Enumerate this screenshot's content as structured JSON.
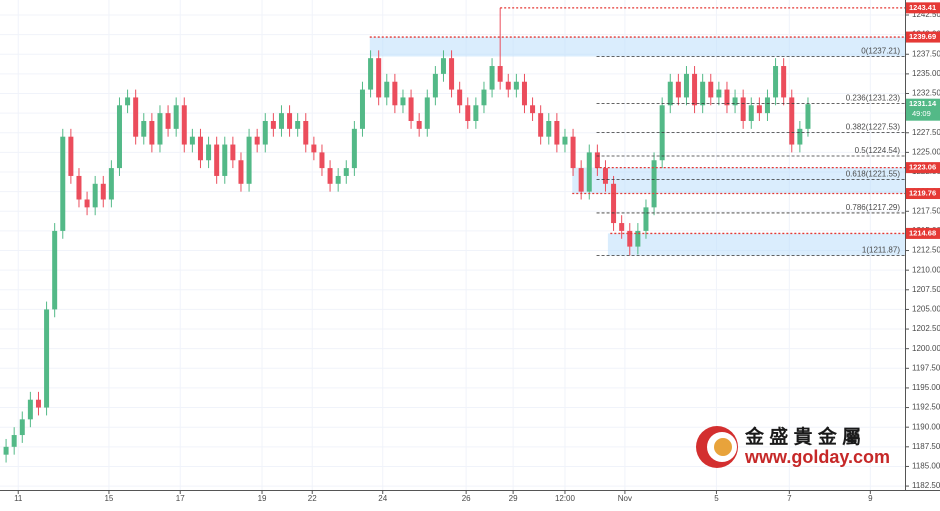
{
  "chart_data": {
    "type": "candlestick",
    "open": [
      1186.5,
      1187.5,
      1189,
      1191,
      1193.5,
      1192.5,
      1205,
      1215,
      1227,
      1222,
      1219,
      1218,
      1221,
      1219,
      1223,
      1231,
      1232,
      1227,
      1229,
      1226,
      1230,
      1228,
      1231,
      1226,
      1227,
      1224,
      1226,
      1222,
      1226,
      1224,
      1221,
      1227,
      1226,
      1229,
      1228,
      1230,
      1228,
      1229,
      1226,
      1225,
      1223,
      1221,
      1222,
      1223,
      1228,
      1233,
      1237,
      1232,
      1234,
      1231,
      1232,
      1229,
      1228,
      1232,
      1235,
      1237,
      1233,
      1231,
      1229,
      1231,
      1233,
      1236,
      1234,
      1233,
      1234,
      1231,
      1230,
      1227,
      1229,
      1226,
      1227,
      1223,
      1220,
      1225,
      1223,
      1221,
      1216,
      1215,
      1213,
      1215,
      1218,
      1224,
      1231,
      1234,
      1232,
      1235,
      1231,
      1234,
      1232,
      1233,
      1231,
      1232,
      1229,
      1231,
      1230,
      1232,
      1236,
      1232,
      1226,
      1228
    ],
    "high": [
      1188.5,
      1190,
      1192,
      1194.5,
      1194.5,
      1206,
      1216,
      1228,
      1228,
      1223,
      1220,
      1222,
      1222,
      1224,
      1232,
      1233,
      1233,
      1230,
      1230,
      1231,
      1231,
      1232,
      1232,
      1228,
      1228,
      1227,
      1227,
      1227,
      1227,
      1225,
      1228,
      1228,
      1230,
      1230,
      1231,
      1231,
      1230,
      1230,
      1227,
      1226,
      1224,
      1223,
      1224,
      1229,
      1234,
      1238,
      1238,
      1235,
      1235,
      1233,
      1233,
      1230,
      1233,
      1236,
      1238,
      1238,
      1234,
      1232,
      1232,
      1234,
      1237,
      1243.41,
      1235,
      1235,
      1235,
      1232,
      1231,
      1230,
      1230,
      1228,
      1228,
      1224,
      1226,
      1226,
      1224,
      1222,
      1217,
      1216,
      1216,
      1219,
      1225,
      1232,
      1235,
      1235,
      1236,
      1236,
      1235,
      1235,
      1234,
      1234,
      1233,
      1233,
      1232,
      1232,
      1233,
      1237,
      1237,
      1233,
      1229,
      1232
    ],
    "low": [
      1185.5,
      1186.5,
      1188,
      1190,
      1191.5,
      1191.5,
      1204,
      1214,
      1221,
      1218,
      1217,
      1217,
      1218,
      1218,
      1222,
      1230,
      1226,
      1226,
      1225,
      1225,
      1227,
      1227,
      1225,
      1225,
      1223,
      1223,
      1221,
      1221,
      1223,
      1220,
      1220,
      1225,
      1225,
      1227,
      1227,
      1227,
      1227,
      1225,
      1224,
      1222,
      1220,
      1220,
      1221,
      1222,
      1227,
      1232,
      1231,
      1231,
      1230,
      1230,
      1228,
      1227,
      1227,
      1231,
      1234,
      1232,
      1230,
      1228,
      1228,
      1230,
      1232,
      1233,
      1232,
      1232,
      1230,
      1229,
      1226,
      1226,
      1225,
      1225,
      1222,
      1219,
      1219,
      1222,
      1220,
      1215,
      1214,
      1211.87,
      1212,
      1214,
      1217,
      1223,
      1230,
      1231,
      1231,
      1230,
      1230,
      1231,
      1231,
      1230,
      1230,
      1228,
      1228,
      1229,
      1229,
      1231,
      1231,
      1225,
      1225,
      1227
    ],
    "close": [
      1187.5,
      1189,
      1191,
      1193.5,
      1192.5,
      1205,
      1215,
      1227,
      1222,
      1219,
      1218,
      1221,
      1219,
      1223,
      1231,
      1232,
      1227,
      1229,
      1226,
      1230,
      1228,
      1231,
      1226,
      1227,
      1224,
      1226,
      1222,
      1226,
      1224,
      1221,
      1227,
      1226,
      1229,
      1228,
      1230,
      1228,
      1229,
      1226,
      1225,
      1223,
      1221,
      1222,
      1223,
      1228,
      1233,
      1237,
      1232,
      1234,
      1231,
      1232,
      1229,
      1228,
      1232,
      1235,
      1237,
      1233,
      1231,
      1229,
      1231,
      1233,
      1236,
      1234,
      1233,
      1234,
      1231,
      1230,
      1227,
      1229,
      1226,
      1227,
      1223,
      1220,
      1225,
      1223,
      1221,
      1216,
      1215,
      1213,
      1215,
      1218,
      1224,
      1231,
      1234,
      1232,
      1235,
      1231,
      1234,
      1232,
      1233,
      1231,
      1232,
      1229,
      1231,
      1230,
      1232,
      1236,
      1232,
      1226,
      1228,
      1231.14
    ],
    "up_color": "#53b987",
    "down_color": "#eb4d5c",
    "xlim": [
      -0.75,
      110.98
    ],
    "xticks": [
      {
        "value": 1.5,
        "label": "11"
      },
      {
        "value": 12.7,
        "label": "15"
      },
      {
        "value": 21.5,
        "label": "17"
      },
      {
        "value": 31.6,
        "label": "19"
      },
      {
        "value": 37.8,
        "label": "22"
      },
      {
        "value": 46.5,
        "label": "24"
      },
      {
        "value": 56.8,
        "label": "26"
      },
      {
        "value": 62.6,
        "label": "29"
      },
      {
        "value": 69,
        "label": "12:00"
      },
      {
        "value": 76.4,
        "label": "Nov"
      },
      {
        "value": 87.7,
        "label": "5"
      },
      {
        "value": 96.7,
        "label": "7"
      },
      {
        "value": 106.7,
        "label": "9"
      }
    ],
    "ylim": [
      1182,
      1244.41
    ],
    "yticks": [
      {
        "value": 1182.5,
        "label": "1182.50"
      },
      {
        "value": 1185,
        "label": "1185.00"
      },
      {
        "value": 1187.5,
        "label": "1187.50"
      },
      {
        "value": 1190,
        "label": "1190.00"
      },
      {
        "value": 1192.5,
        "label": "1192.50"
      },
      {
        "value": 1195,
        "label": "1195.00"
      },
      {
        "value": 1197.5,
        "label": "1197.50"
      },
      {
        "value": 1200,
        "label": "1200.00"
      },
      {
        "value": 1202.5,
        "label": "1202.50"
      },
      {
        "value": 1205,
        "label": "1205.00"
      },
      {
        "value": 1207.5,
        "label": "1207.50"
      },
      {
        "value": 1210,
        "label": "1210.00"
      },
      {
        "value": 1212.5,
        "label": "1212.50"
      },
      {
        "value": 1215,
        "label": "1215.00"
      },
      {
        "value": 1217.5,
        "label": "1217.50"
      },
      {
        "value": 1220,
        "label": "1220.00"
      },
      {
        "value": 1222.5,
        "label": "1222.50"
      },
      {
        "value": 1225,
        "label": "1225.00"
      },
      {
        "value": 1227.5,
        "label": "1227.50"
      },
      {
        "value": 1230,
        "label": "1230.00"
      },
      {
        "value": 1232.5,
        "label": "1232.50"
      },
      {
        "value": 1235,
        "label": "1235.00"
      },
      {
        "value": 1237.5,
        "label": "1237.50"
      },
      {
        "value": 1240,
        "label": "1240.00"
      },
      {
        "value": 1242.5,
        "label": "1242.50"
      }
    ],
    "grid": true,
    "zones": [
      {
        "from": 1237.21,
        "to": 1239.69,
        "x_start": 44.9
      },
      {
        "from": 1219.76,
        "to": 1223.06,
        "x_start": 69.9
      },
      {
        "from": 1211.87,
        "to": 1214.68,
        "x_start": 74.3
      }
    ],
    "price_lines": [
      {
        "value": 1243.41,
        "x_start": 61
      },
      {
        "value": 1239.69,
        "x_start": 44.9
      },
      {
        "value": 1223.06,
        "x_start": 72.8
      },
      {
        "value": 1219.76,
        "x_start": 69.9
      },
      {
        "value": 1214.68,
        "x_start": 74.6
      }
    ],
    "price_line_color": "#e53935",
    "fib_start": 72.9,
    "fib_levels": [
      {
        "text": "0(1237.21)",
        "value": 1237.21
      },
      {
        "text": "0.236(1231.23)",
        "value": 1231.23
      },
      {
        "text": "0.382(1227.53)",
        "value": 1227.53
      },
      {
        "text": "0.5(1224.54)",
        "value": 1224.54
      },
      {
        "text": "0.618(1221.55)",
        "value": 1221.55
      },
      {
        "text": "0.786(1217.29)",
        "value": 1217.29
      },
      {
        "text": "1(1211.87)",
        "value": 1211.87
      }
    ],
    "last_price": 1231.14,
    "countdown": "49:09",
    "watermark": {
      "name": "金 盛 貴 金 屬",
      "url": "www.golday.com"
    }
  }
}
